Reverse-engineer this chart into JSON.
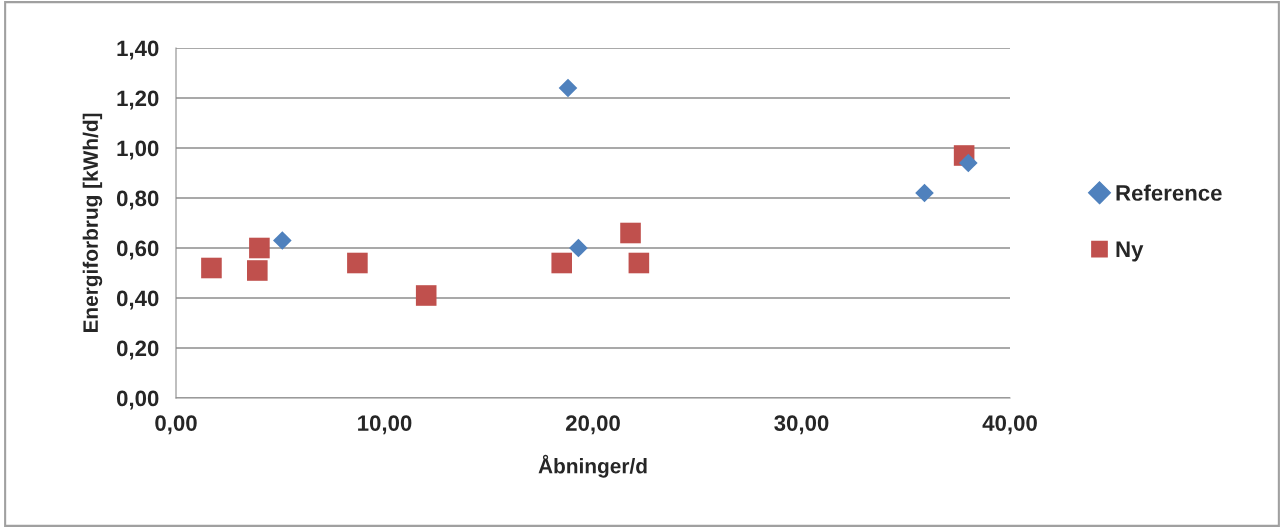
{
  "chart_data": {
    "type": "scatter",
    "xlabel": "Åbninger/d",
    "ylabel": "Energiforbrug [kWh/d]",
    "series": [
      {
        "name": "Reference",
        "color": "#4f81bd",
        "marker": "diamond",
        "x": [
          5.1,
          18.8,
          19.3,
          35.9,
          38.0
        ],
        "values": [
          0.63,
          1.24,
          0.6,
          0.82,
          0.94
        ]
      },
      {
        "name": "Ny",
        "color": "#c0504d",
        "marker": "square",
        "x": [
          1.7,
          3.9,
          4.0,
          8.7,
          12.0,
          18.5,
          21.8,
          22.2,
          37.8
        ],
        "values": [
          0.52,
          0.51,
          0.6,
          0.54,
          0.41,
          0.54,
          0.66,
          0.54,
          0.97
        ]
      }
    ],
    "xlim": [
      0,
      40
    ],
    "xticks": [
      {
        "value": 0,
        "label": "0,00"
      },
      {
        "value": 10,
        "label": "10,00"
      },
      {
        "value": 20,
        "label": "20,00"
      },
      {
        "value": 30,
        "label": "30,00"
      },
      {
        "value": 40,
        "label": "40,00"
      }
    ],
    "ylim": [
      0,
      1.4
    ],
    "yticks": [
      {
        "value": 0,
        "label": "0,00"
      },
      {
        "value": 0.2,
        "label": "0,20"
      },
      {
        "value": 0.4,
        "label": "0,40"
      },
      {
        "value": 0.6,
        "label": "0,60"
      },
      {
        "value": 0.8,
        "label": "0,80"
      },
      {
        "value": 1.0,
        "label": "1,00"
      },
      {
        "value": 1.2,
        "label": "1,20"
      },
      {
        "value": 1.4,
        "label": "1,40"
      }
    ],
    "grid": "y",
    "legend": "right"
  }
}
